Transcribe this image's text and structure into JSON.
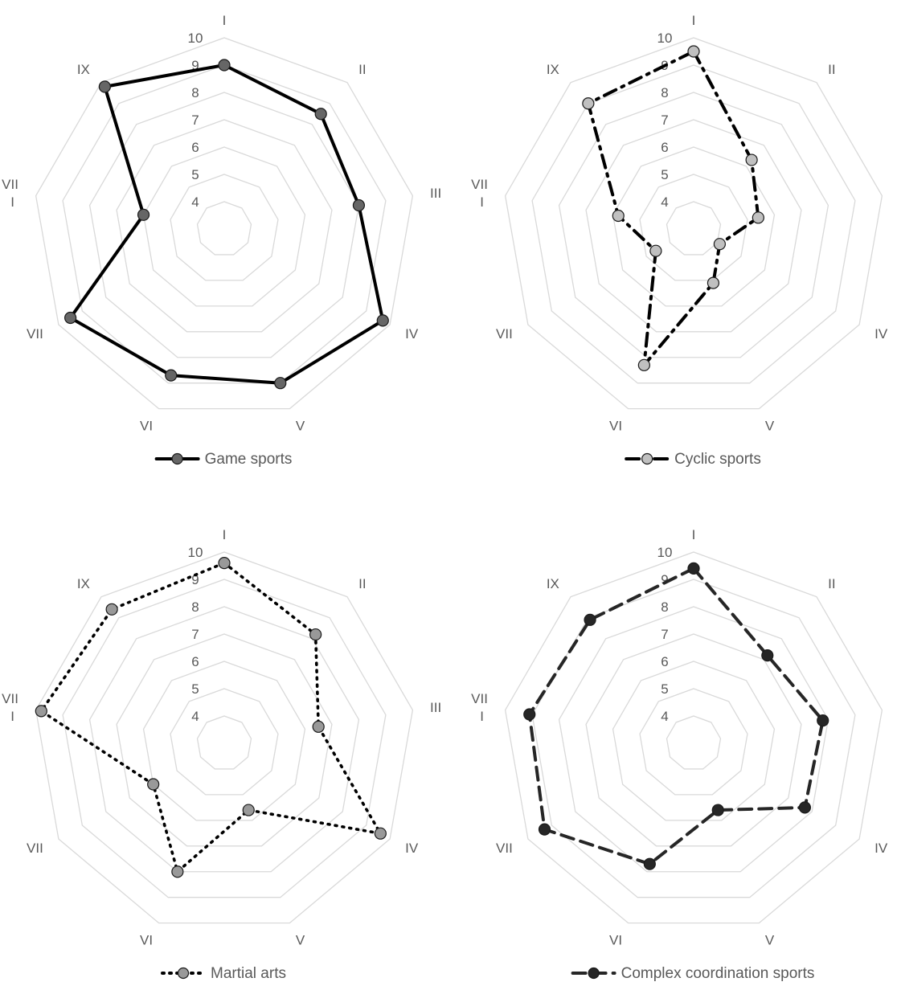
{
  "chart_data": [
    {
      "type": "radar",
      "axes": [
        "I",
        "II",
        "III",
        "IV",
        "V",
        "VI",
        "VII",
        "VII\nI",
        "IX"
      ],
      "r_ticks": [
        "4",
        "5",
        "6",
        "7",
        "8",
        "9",
        "10"
      ],
      "rlim": [
        3,
        10
      ],
      "series": [
        {
          "name": "Game sports",
          "values": [
            9.0,
            8.5,
            8.0,
            9.7,
            9.0,
            8.7,
            9.5,
            6.0,
            9.8
          ]
        }
      ],
      "line_style": "solid",
      "line_color": "#000000",
      "marker_fill": "#666666",
      "legend_position": "bottom"
    },
    {
      "type": "radar",
      "axes": [
        "I",
        "II",
        "III",
        "IV",
        "V",
        "VI",
        "VII",
        "VII\nI",
        "IX"
      ],
      "r_ticks": [
        "4",
        "5",
        "6",
        "7",
        "8",
        "9",
        "10"
      ],
      "rlim": [
        3,
        10
      ],
      "series": [
        {
          "name": "Cyclic sports",
          "values": [
            9.5,
            6.3,
            5.4,
            4.1,
            5.1,
            8.3,
            4.6,
            5.8,
            9.0
          ]
        }
      ],
      "line_style": "dash-dot",
      "line_color": "#000000",
      "marker_fill": "#c0c0c0",
      "legend_position": "bottom"
    },
    {
      "type": "radar",
      "axes": [
        "I",
        "II",
        "III",
        "IV",
        "V",
        "VI",
        "VII",
        "VII\nI",
        "IX"
      ],
      "r_ticks": [
        "4",
        "5",
        "6",
        "7",
        "8",
        "9",
        "10"
      ],
      "rlim": [
        3,
        10
      ],
      "series": [
        {
          "name": "Martial arts",
          "values": [
            9.6,
            8.2,
            6.5,
            9.6,
            5.6,
            8.0,
            6.0,
            9.8,
            9.4
          ]
        }
      ],
      "line_style": "dotted",
      "line_color": "#000000",
      "marker_fill": "#999999",
      "legend_position": "bottom"
    },
    {
      "type": "radar",
      "axes": [
        "I",
        "II",
        "III",
        "IV",
        "V",
        "VI",
        "VII",
        "VII\nI",
        "IX"
      ],
      "r_ticks": [
        "4",
        "5",
        "6",
        "7",
        "8",
        "9",
        "10"
      ],
      "rlim": [
        3,
        10
      ],
      "series": [
        {
          "name": "Complex coordination sports",
          "values": [
            9.4,
            7.2,
            7.8,
            7.7,
            5.6,
            7.7,
            9.3,
            9.1,
            8.9
          ]
        }
      ],
      "line_style": "dashed",
      "line_color": "#262626",
      "marker_fill": "#262626",
      "legend_position": "bottom"
    }
  ],
  "colors": {
    "grid": "#d9d9d9",
    "label_text": "#595959"
  }
}
